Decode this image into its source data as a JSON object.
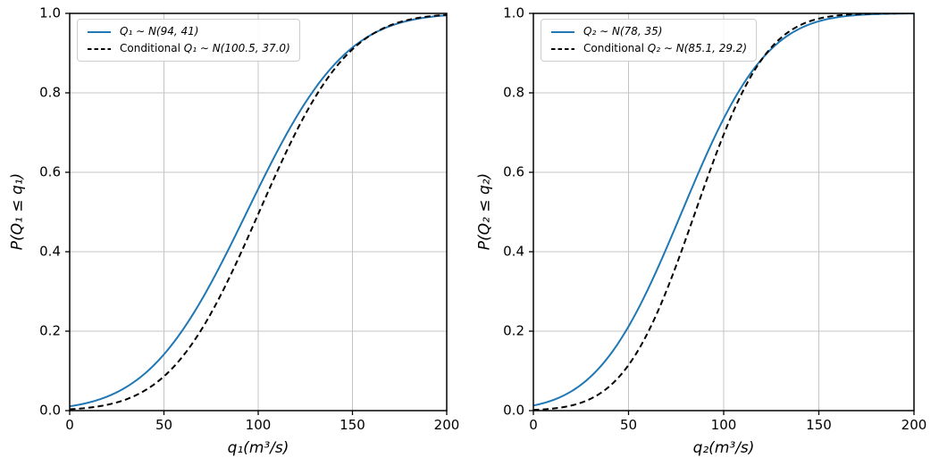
{
  "figure": {
    "background": "#ffffff",
    "text_color": "#000000",
    "spine_color": "#000000"
  },
  "chart_data": [
    {
      "type": "line",
      "title": "",
      "xlabel": "q₁(m³/s)",
      "ylabel": "P(Q₁ ≤ q₁)",
      "xlim": [
        0,
        200
      ],
      "ylim": [
        0.0,
        1.0
      ],
      "xticks": [
        0,
        50,
        100,
        150,
        200
      ],
      "xtick_labels": [
        "0",
        "50",
        "100",
        "150",
        "200"
      ],
      "yticks": [
        0.0,
        0.2,
        0.4,
        0.6,
        0.8,
        1.0
      ],
      "ytick_labels": [
        "0.0",
        "0.2",
        "0.4",
        "0.6",
        "0.8",
        "1.0"
      ],
      "grid": true,
      "grid_color": "#c4c4c4",
      "legend_position": "upper left",
      "series": [
        {
          "name": "Q₁ ∼ N(94, 41)",
          "label_prefix": "",
          "label_math": "Q₁ ∼ N(94, 41)",
          "distribution": "normal_cdf",
          "mean": 94,
          "std": 41,
          "color": "#1f77b4",
          "line_style": "solid"
        },
        {
          "name": "Conditional Q₁ ∼ N(100.5, 37.0)",
          "label_prefix": "Conditional ",
          "label_math": "Q₁ ∼ N(100.5, 37.0)",
          "distribution": "normal_cdf",
          "mean": 100.5,
          "std": 37.0,
          "color": "#000000",
          "line_style": "dashed"
        }
      ]
    },
    {
      "type": "line",
      "title": "",
      "xlabel": "q₂(m³/s)",
      "ylabel": "P(Q₂ ≤ q₂)",
      "xlim": [
        0,
        200
      ],
      "ylim": [
        0.0,
        1.0
      ],
      "xticks": [
        0,
        50,
        100,
        150,
        200
      ],
      "xtick_labels": [
        "0",
        "50",
        "100",
        "150",
        "200"
      ],
      "yticks": [
        0.0,
        0.2,
        0.4,
        0.6,
        0.8,
        1.0
      ],
      "ytick_labels": [
        "0.0",
        "0.2",
        "0.4",
        "0.6",
        "0.8",
        "1.0"
      ],
      "grid": true,
      "grid_color": "#c4c4c4",
      "legend_position": "upper left",
      "series": [
        {
          "name": "Q₂ ∼ N(78, 35)",
          "label_prefix": "",
          "label_math": "Q₂ ∼ N(78, 35)",
          "distribution": "normal_cdf",
          "mean": 78,
          "std": 35,
          "color": "#1f77b4",
          "line_style": "solid"
        },
        {
          "name": "Conditional Q₂ ∼ N(85.1, 29.2)",
          "label_prefix": "Conditional ",
          "label_math": "Q₂ ∼ N(85.1, 29.2)",
          "distribution": "normal_cdf",
          "mean": 85.1,
          "std": 29.2,
          "color": "#000000",
          "line_style": "dashed"
        }
      ]
    }
  ]
}
